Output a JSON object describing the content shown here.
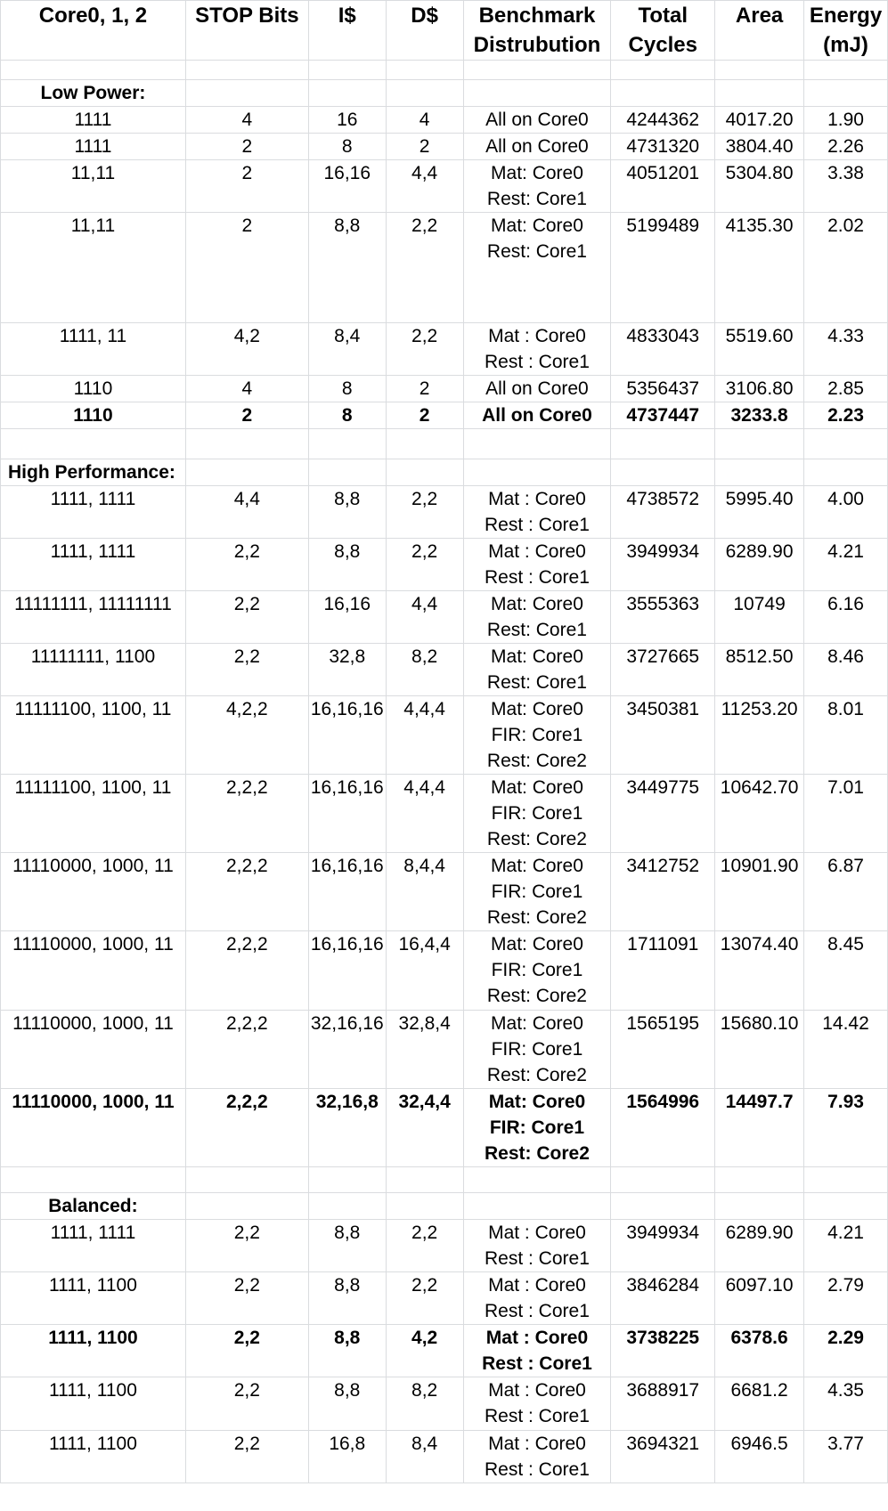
{
  "headers": {
    "cores": "Core0, 1, 2",
    "stop_bits": "STOP Bits",
    "icache": "I$",
    "dcache": "D$",
    "bench_1": "Benchmark",
    "bench_2": "Distrubution",
    "cycles_1": "Total",
    "cycles_2": "Cycles",
    "area": "Area",
    "energy_1": "Energy",
    "energy_2": "(mJ)"
  },
  "sections": {
    "low_power": "Low Power:",
    "high_performance": "High Performance:",
    "balanced": "Balanced:"
  },
  "low_power": [
    {
      "cores": "1111",
      "stop": "4",
      "i": "16",
      "d": "4",
      "bench": [
        "All on Core0"
      ],
      "cycles": "4244362",
      "area": "4017.20",
      "energy": "1.90"
    },
    {
      "cores": "1111",
      "stop": "2",
      "i": "8",
      "d": "2",
      "bench": [
        "All on Core0"
      ],
      "cycles": "4731320",
      "area": "3804.40",
      "energy": "2.26"
    },
    {
      "cores": "11,11",
      "stop": "2",
      "i": "16,16",
      "d": "4,4",
      "bench": [
        "Mat: Core0",
        "Rest: Core1"
      ],
      "cycles": "4051201",
      "area": "5304.80",
      "energy": "3.38"
    },
    {
      "cores": "11,11",
      "stop": "2",
      "i": "8,8",
      "d": "2,2",
      "bench": [
        "Mat: Core0",
        "Rest: Core1"
      ],
      "cycles": "5199489",
      "area": "4135.30",
      "energy": "2.02"
    },
    {
      "cores": "1111, 11",
      "stop": "4,2",
      "i": "8,4",
      "d": "2,2",
      "bench": [
        "Mat : Core0",
        "Rest : Core1"
      ],
      "cycles": "4833043",
      "area": "5519.60",
      "energy": "4.33"
    },
    {
      "cores": "1110",
      "stop": "4",
      "i": "8",
      "d": "2",
      "bench": [
        "All on Core0"
      ],
      "cycles": "5356437",
      "area": "3106.80",
      "energy": "2.85"
    },
    {
      "cores": "1110",
      "stop": "2",
      "i": "8",
      "d": "2",
      "bench": [
        "All on Core0"
      ],
      "cycles": "4737447",
      "area": "3233.8",
      "energy": "2.23"
    }
  ],
  "high_performance": [
    {
      "cores": "1111, 1111",
      "stop": "4,4",
      "i": "8,8",
      "d": "2,2",
      "bench": [
        "Mat : Core0",
        "Rest : Core1"
      ],
      "cycles": "4738572",
      "area": "5995.40",
      "energy": "4.00"
    },
    {
      "cores": "1111, 1111",
      "stop": "2,2",
      "i": "8,8",
      "d": "2,2",
      "bench": [
        "Mat : Core0",
        "Rest : Core1"
      ],
      "cycles": "3949934",
      "area": "6289.90",
      "energy": "4.21"
    },
    {
      "cores": "11111111, 11111111",
      "stop": "2,2",
      "i": "16,16",
      "d": "4,4",
      "bench": [
        "Mat: Core0",
        "Rest: Core1"
      ],
      "cycles": "3555363",
      "area": "10749",
      "energy": "6.16"
    },
    {
      "cores": "11111111, 1100",
      "stop": "2,2",
      "i": "32,8",
      "d": "8,2",
      "bench": [
        "Mat: Core0",
        "Rest: Core1"
      ],
      "cycles": "3727665",
      "area": "8512.50",
      "energy": "8.46"
    },
    {
      "cores": "11111100, 1100, 11",
      "stop": "4,2,2",
      "i": "16,16,16",
      "d": "4,4,4",
      "bench": [
        "Mat: Core0",
        "FIR: Core1",
        "Rest: Core2"
      ],
      "cycles": "3450381",
      "area": "11253.20",
      "energy": "8.01"
    },
    {
      "cores": "11111100, 1100, 11",
      "stop": "2,2,2",
      "i": "16,16,16",
      "d": "4,4,4",
      "bench": [
        "Mat: Core0",
        "FIR: Core1",
        "Rest: Core2"
      ],
      "cycles": "3449775",
      "area": "10642.70",
      "energy": "7.01"
    },
    {
      "cores": "11110000, 1000, 11",
      "stop": "2,2,2",
      "i": "16,16,16",
      "d": "8,4,4",
      "bench": [
        "Mat: Core0",
        "FIR: Core1",
        "Rest: Core2"
      ],
      "cycles": "3412752",
      "area": "10901.90",
      "energy": "6.87"
    },
    {
      "cores": "11110000, 1000, 11",
      "stop": "2,2,2",
      "i": "16,16,16",
      "d": "16,4,4",
      "bench": [
        "Mat: Core0",
        "FIR: Core1",
        "Rest: Core2"
      ],
      "cycles": "1711091",
      "area": "13074.40",
      "energy": "8.45"
    },
    {
      "cores": "11110000, 1000, 11",
      "stop": "2,2,2",
      "i": "32,16,16",
      "d": "32,8,4",
      "bench": [
        "Mat: Core0",
        "FIR: Core1",
        "Rest: Core2"
      ],
      "cycles": "1565195",
      "area": "15680.10",
      "energy": "14.42"
    },
    {
      "cores": "11110000, 1000, 11",
      "stop": "2,2,2",
      "i": "32,16,8",
      "d": "32,4,4",
      "bench": [
        "Mat: Core0",
        "FIR: Core1",
        "Rest: Core2"
      ],
      "cycles": "1564996",
      "area": "14497.7",
      "energy": "7.93"
    }
  ],
  "balanced": [
    {
      "cores": "1111, 1111",
      "stop": "2,2",
      "i": "8,8",
      "d": "2,2",
      "bench": [
        "Mat : Core0",
        "Rest : Core1"
      ],
      "cycles": "3949934",
      "area": "6289.90",
      "energy": "4.21"
    },
    {
      "cores": "1111, 1100",
      "stop": "2,2",
      "i": "8,8",
      "d": "2,2",
      "bench": [
        "Mat : Core0",
        "Rest : Core1"
      ],
      "cycles": "3846284",
      "area": "6097.10",
      "energy": "2.79"
    },
    {
      "cores": "1111, 1100",
      "stop": "2,2",
      "i": "8,8",
      "d": "4,2",
      "bench": [
        "Mat : Core0",
        "Rest : Core1"
      ],
      "cycles": "3738225",
      "area": "6378.6",
      "energy": "2.29"
    },
    {
      "cores": "1111, 1100",
      "stop": "2,2",
      "i": "8,8",
      "d": "8,2",
      "bench": [
        "Mat : Core0",
        "Rest : Core1"
      ],
      "cycles": "3688917",
      "area": "6681.2",
      "energy": "4.35"
    },
    {
      "cores": "1111, 1100",
      "stop": "2,2",
      "i": "16,8",
      "d": "8,4",
      "bench": [
        "Mat : Core0",
        "Rest : Core1"
      ],
      "cycles": "3694321",
      "area": "6946.5",
      "energy": "3.77"
    }
  ]
}
